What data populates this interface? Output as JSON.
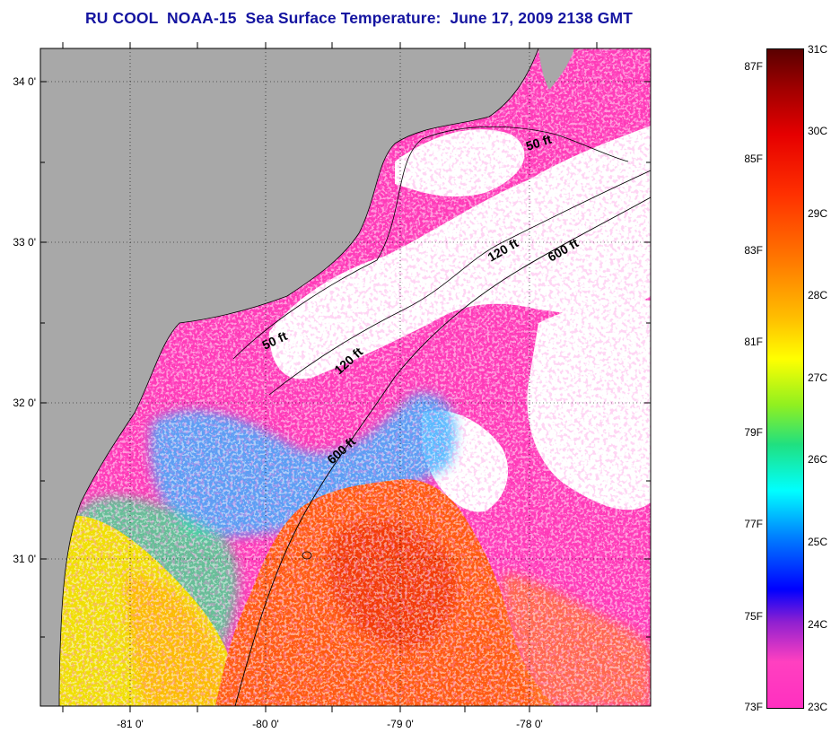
{
  "title": "RU COOL  NOAA-15  Sea Surface Temperature:  June 17, 2009 2138 GMT",
  "map": {
    "lat_labels": [
      "34 0'",
      "33 0'",
      "32 0'",
      "31 0'"
    ],
    "lon_labels": [
      "-81 0'",
      "-80 0'",
      "-79 0'",
      "-78 0'"
    ],
    "isobath_labels": [
      "50 ft",
      "50 ft",
      "120 ft",
      "120 ft",
      "600 ft",
      "600 ft"
    ],
    "colors": {
      "land": "#a8a8a8",
      "cloud": "#ffffff",
      "cool": "#ff3ab8",
      "warm": "#ff5a10"
    }
  },
  "colorbar": {
    "fahrenheit_labels": [
      "87F",
      "85F",
      "83F",
      "81F",
      "79F",
      "77F",
      "75F",
      "73F"
    ],
    "celsius_labels": [
      "31C",
      "30C",
      "29C",
      "28C",
      "27C",
      "26C",
      "25C",
      "24C",
      "23C"
    ]
  }
}
